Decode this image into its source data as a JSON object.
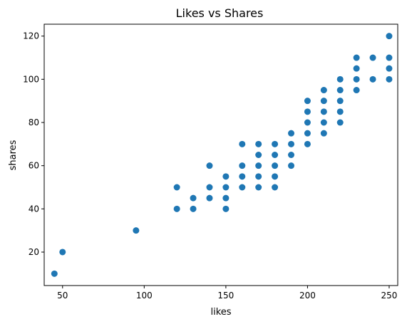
{
  "chart_data": {
    "type": "scatter",
    "title": "Likes vs Shares",
    "xlabel": "likes",
    "ylabel": "shares",
    "xlim": [
      38.75,
      255.25
    ],
    "ylim": [
      4.5,
      125.5
    ],
    "xticks": [
      50,
      100,
      150,
      200,
      250
    ],
    "yticks": [
      20,
      40,
      60,
      80,
      100,
      120
    ],
    "grid": false,
    "marker_color": "#1f77b4",
    "points": [
      [
        45,
        10
      ],
      [
        50,
        20
      ],
      [
        95,
        30
      ],
      [
        120,
        40
      ],
      [
        120,
        50
      ],
      [
        130,
        40
      ],
      [
        130,
        45
      ],
      [
        140,
        45
      ],
      [
        140,
        50
      ],
      [
        140,
        60
      ],
      [
        150,
        40
      ],
      [
        150,
        45
      ],
      [
        150,
        50
      ],
      [
        150,
        55
      ],
      [
        160,
        50
      ],
      [
        160,
        55
      ],
      [
        160,
        60
      ],
      [
        160,
        70
      ],
      [
        170,
        50
      ],
      [
        170,
        55
      ],
      [
        170,
        60
      ],
      [
        170,
        65
      ],
      [
        170,
        70
      ],
      [
        180,
        50
      ],
      [
        180,
        55
      ],
      [
        180,
        60
      ],
      [
        180,
        65
      ],
      [
        180,
        70
      ],
      [
        190,
        60
      ],
      [
        190,
        65
      ],
      [
        190,
        70
      ],
      [
        190,
        75
      ],
      [
        200,
        70
      ],
      [
        200,
        75
      ],
      [
        200,
        80
      ],
      [
        200,
        85
      ],
      [
        200,
        90
      ],
      [
        210,
        75
      ],
      [
        210,
        80
      ],
      [
        210,
        85
      ],
      [
        210,
        90
      ],
      [
        210,
        95
      ],
      [
        220,
        80
      ],
      [
        220,
        85
      ],
      [
        220,
        90
      ],
      [
        220,
        95
      ],
      [
        220,
        100
      ],
      [
        230,
        95
      ],
      [
        230,
        100
      ],
      [
        230,
        105
      ],
      [
        230,
        110
      ],
      [
        240,
        100
      ],
      [
        240,
        110
      ],
      [
        250,
        100
      ],
      [
        250,
        105
      ],
      [
        250,
        110
      ],
      [
        250,
        120
      ]
    ]
  }
}
